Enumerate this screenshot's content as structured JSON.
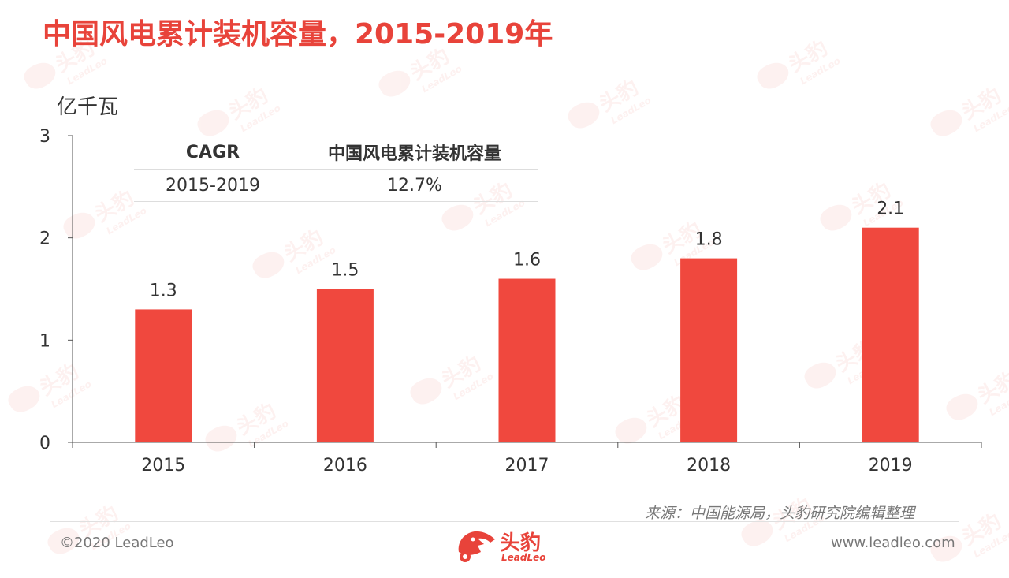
{
  "title": "中国风电累计装机容量，2015-2019年",
  "chart_data": {
    "type": "bar",
    "categories": [
      "2015",
      "2016",
      "2017",
      "2018",
      "2019"
    ],
    "values": [
      1.3,
      1.5,
      1.6,
      1.8,
      2.1
    ],
    "data_labels": [
      "1.3",
      "1.5",
      "1.6",
      "1.8",
      "2.1"
    ],
    "ylabel": "亿千瓦",
    "ylim": [
      0,
      3
    ],
    "yticks": [
      "0",
      "1",
      "2",
      "3"
    ],
    "bar_color": "#f0483e",
    "grid": false
  },
  "cagr_table": {
    "headers": [
      "CAGR",
      "中国风电累计装机容量"
    ],
    "rows": [
      [
        "2015-2019",
        "12.7%"
      ]
    ]
  },
  "source": "来源：中国能源局，头豹研究院编辑整理",
  "footer": {
    "copyright": "©2020 LeadLeo",
    "website": "www.leadleo.com",
    "logo_cn": "头豹",
    "logo_en": "LeadLeo"
  },
  "watermark": {
    "cn": "头豹",
    "en": "LeadLeo"
  },
  "colors": {
    "accent": "#e8433a",
    "bar": "#f0483e",
    "text": "#333333",
    "muted": "#777777"
  }
}
